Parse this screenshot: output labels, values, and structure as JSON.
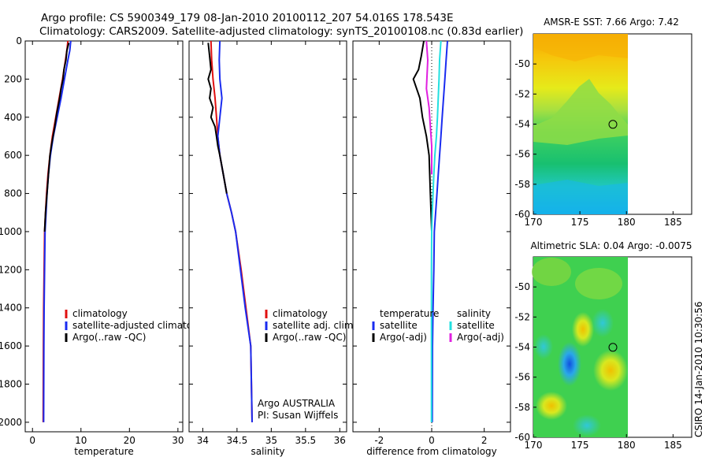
{
  "header": {
    "line1": "Argo profile: CS 5900349_179 08-Jan-2010 20100112_207 54.016S 178.543E",
    "line2": "Climatology: CARS2009. Satellite-adjusted climatology: synTS_20100108.nc (0.83d earlier)"
  },
  "side_stamp": "CSIRO 14-Jan-2010 10:30:56",
  "colors": {
    "climatology": "#e01010",
    "satellite": "#1a2cf0",
    "argo": "#000000",
    "sal_satellite": "#22e0e0",
    "sal_argo": "#e020e0"
  },
  "chart_data": [
    {
      "id": "temperature",
      "type": "line",
      "xlabel": "temperature",
      "ylabel": "",
      "xlim": [
        -1.5,
        31
      ],
      "ylim": [
        2050,
        0
      ],
      "xticks": [
        0,
        10,
        20,
        30
      ],
      "yticks": [
        0,
        200,
        400,
        600,
        800,
        1000,
        1200,
        1400,
        1600,
        1800,
        2000
      ],
      "legend": [
        "climatology",
        "satellite-adjusted climatology",
        "Argo(..raw -QC)"
      ],
      "legend_position": "lower-right",
      "series": [
        {
          "name": "climatology",
          "color": "#e01010",
          "x": [
            7.3,
            7.1,
            6.8,
            6.2,
            5.5,
            4.8,
            4.1,
            3.6,
            3.2,
            2.9,
            2.7,
            2.5,
            2.4,
            2.3,
            2.25,
            2.2
          ],
          "y": [
            0,
            50,
            100,
            200,
            300,
            400,
            500,
            600,
            700,
            800,
            900,
            1000,
            1200,
            1400,
            1600,
            2000
          ]
        },
        {
          "name": "satellite-adjusted climatology",
          "color": "#1a2cf0",
          "x": [
            7.9,
            7.7,
            7.3,
            6.6,
            5.9,
            5.1,
            4.3,
            3.7,
            3.3,
            3.0,
            2.8,
            2.6,
            2.5,
            2.4,
            2.35,
            2.3
          ],
          "y": [
            0,
            50,
            100,
            200,
            300,
            400,
            500,
            600,
            700,
            800,
            900,
            1000,
            1200,
            1400,
            1600,
            2000
          ]
        },
        {
          "name": "Argo(..raw -QC)",
          "color": "#000000",
          "x": [
            7.5,
            7.1,
            6.9,
            6.5,
            6.3,
            5.9,
            5.6,
            5.0,
            4.6,
            3.9,
            3.6,
            3.3,
            3.0,
            2.7,
            2.5
          ],
          "y": [
            10,
            50,
            100,
            150,
            200,
            250,
            300,
            380,
            450,
            550,
            600,
            700,
            800,
            900,
            1000
          ]
        }
      ]
    },
    {
      "id": "salinity",
      "type": "line",
      "xlabel": "salinity",
      "ylabel": "",
      "xlim": [
        33.8,
        36.1
      ],
      "ylim": [
        2050,
        0
      ],
      "xticks": [
        34,
        34.5,
        35,
        35.5,
        36
      ],
      "yticks": [],
      "legend": [
        "climatology",
        "satellite adj. clim.",
        "Argo(..raw -QC)"
      ],
      "legend_position": "lower-right",
      "annotation": [
        "Argo AUSTRALIA",
        "PI: Susan Wijffels"
      ],
      "series": [
        {
          "name": "climatology",
          "color": "#e01010",
          "x": [
            34.12,
            34.13,
            34.15,
            34.18,
            34.2,
            34.22,
            34.25,
            34.3,
            34.35,
            34.42,
            34.48,
            34.56,
            34.63,
            34.7,
            34.72
          ],
          "y": [
            0,
            100,
            200,
            300,
            400,
            500,
            600,
            700,
            800,
            900,
            1000,
            1200,
            1400,
            1600,
            2000
          ]
        },
        {
          "name": "satellite adj. clim.",
          "color": "#1a2cf0",
          "x": [
            34.25,
            34.24,
            34.25,
            34.28,
            34.25,
            34.22,
            34.25,
            34.3,
            34.35,
            34.42,
            34.48,
            34.55,
            34.62,
            34.7,
            34.72
          ],
          "y": [
            0,
            100,
            200,
            300,
            400,
            500,
            600,
            700,
            800,
            900,
            1000,
            1200,
            1400,
            1600,
            2000
          ]
        },
        {
          "name": "Argo(..raw -QC)",
          "color": "#000000",
          "x": [
            34.08,
            34.1,
            34.12,
            34.08,
            34.12,
            34.1,
            34.15,
            34.12,
            34.18,
            34.2,
            34.22,
            34.25,
            34.3,
            34.35
          ],
          "y": [
            10,
            80,
            150,
            200,
            250,
            300,
            350,
            400,
            450,
            500,
            550,
            600,
            700,
            800
          ]
        }
      ]
    },
    {
      "id": "difference",
      "type": "line",
      "xlabel": "difference from climatology",
      "ylabel": "",
      "xlim": [
        -3,
        3
      ],
      "ylim": [
        2050,
        0
      ],
      "xticks": [
        -2,
        0,
        2
      ],
      "yticks": [],
      "legend": [
        "temperature",
        "satellite",
        "Argo(-adj)",
        "salinity",
        "satellite",
        "Argo(-adj)"
      ],
      "legend_position": "lower-center",
      "series": [
        {
          "name": "temperature satellite",
          "color": "#1a2cf0",
          "x": [
            0.6,
            0.55,
            0.5,
            0.45,
            0.4,
            0.35,
            0.3,
            0.25,
            0.2,
            0.15,
            0.1,
            0.08,
            0.05,
            0.03,
            0.02
          ],
          "y": [
            0,
            100,
            200,
            300,
            400,
            500,
            600,
            700,
            800,
            900,
            1000,
            1200,
            1400,
            1600,
            2000
          ]
        },
        {
          "name": "temperature Argo(-adj)",
          "color": "#000000",
          "x": [
            -0.3,
            -0.4,
            -0.5,
            -0.7,
            -0.45,
            -0.35,
            -0.2,
            -0.1,
            -0.05,
            0.0
          ],
          "y": [
            0,
            80,
            150,
            200,
            300,
            400,
            500,
            600,
            800,
            1000
          ]
        },
        {
          "name": "salinity satellite",
          "color": "#22e0e0",
          "x": [
            0.35,
            0.3,
            0.28,
            0.25,
            0.22,
            0.18,
            0.12,
            0.08,
            0.05,
            0.02,
            0.0,
            -0.01,
            -0.01,
            -0.01
          ],
          "y": [
            0,
            100,
            200,
            300,
            400,
            500,
            600,
            700,
            800,
            900,
            1000,
            1200,
            1600,
            2000
          ]
        },
        {
          "name": "salinity Argo(-adj)",
          "color": "#e020e0",
          "x": [
            -0.2,
            -0.15,
            -0.2,
            -0.1,
            -0.05,
            0.0,
            0.0
          ],
          "y": [
            0,
            100,
            250,
            350,
            450,
            550,
            700
          ]
        }
      ]
    },
    {
      "id": "sst_map",
      "type": "heatmap",
      "title": "AMSR-E SST: 7.66 Argo: 7.42",
      "xlim": [
        170,
        187
      ],
      "ylim": [
        -60,
        -48
      ],
      "xticks": [
        170,
        175,
        180,
        185
      ],
      "yticks": [
        -50,
        -52,
        -54,
        -56,
        -58,
        -60
      ],
      "marker": {
        "lon": 178.543,
        "lat": -54.016
      }
    },
    {
      "id": "sla_map",
      "type": "heatmap",
      "title": "Altimetric SLA: 0.04 Argo: -0.0075",
      "xlim": [
        170,
        187
      ],
      "ylim": [
        -60,
        -48
      ],
      "xticks": [
        170,
        175,
        180,
        185
      ],
      "yticks": [
        -50,
        -52,
        -54,
        -56,
        -58,
        -60
      ],
      "marker": {
        "lon": 178.543,
        "lat": -54.016
      }
    }
  ]
}
